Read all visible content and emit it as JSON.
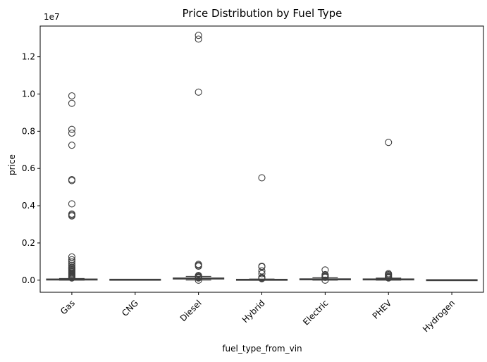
{
  "chart_data": {
    "type": "box",
    "title": "Price Distribution by Fuel Type",
    "xlabel": "fuel_type_from_vin",
    "ylabel": "price",
    "y_offset_label": "1e7",
    "ylim": [
      -0.065,
      1.365
    ],
    "y_ticks": [
      0.0,
      0.2,
      0.4,
      0.6,
      0.8,
      1.0,
      1.2
    ],
    "y_tick_labels": [
      "0.0",
      "0.2",
      "0.4",
      "0.6",
      "0.8",
      "1.0",
      "1.2"
    ],
    "y_scale": "×1e7",
    "x_tick_rotation": 45,
    "grid": false,
    "box_color": "#3b76af",
    "categories": [
      "Gas",
      "CNG",
      "Diesel",
      "Hybrid",
      "Electric",
      "PHEV",
      "Hydrogen"
    ],
    "boxes": [
      {
        "category": "Gas",
        "whisker_low": 0.0,
        "q1": 0.002,
        "median": 0.003,
        "q3": 0.005,
        "whisker_high": 0.009,
        "outliers": [
          0.99,
          0.95,
          0.81,
          0.79,
          0.725,
          0.54,
          0.535,
          0.41,
          0.355,
          0.35,
          0.345,
          0.125,
          0.11,
          0.1,
          0.09,
          0.08,
          0.07,
          0.065,
          0.06,
          0.055,
          0.05,
          0.045,
          0.04,
          0.035,
          0.03,
          0.025,
          0.02,
          0.015,
          0.012
        ]
      },
      {
        "category": "CNG",
        "whisker_low": 0.001,
        "q1": 0.0015,
        "median": 0.002,
        "q3": 0.003,
        "whisker_high": 0.004,
        "outliers": []
      },
      {
        "category": "Diesel",
        "whisker_low": 0.0005,
        "q1": 0.006,
        "median": 0.009,
        "q3": 0.012,
        "whisker_high": 0.02,
        "outliers": [
          1.315,
          1.295,
          1.01,
          0.085,
          0.08,
          0.075,
          0.025,
          0.022,
          0.018,
          0.015,
          0.012,
          0.0
        ]
      },
      {
        "category": "Hybrid",
        "whisker_low": 0.0,
        "q1": 0.001,
        "median": 0.002,
        "q3": 0.003,
        "whisker_high": 0.006,
        "outliers": [
          0.55,
          0.075,
          0.072,
          0.05,
          0.035,
          0.015,
          0.012,
          0.01,
          0.008
        ]
      },
      {
        "category": "Electric",
        "whisker_low": 0.0,
        "q1": 0.002,
        "median": 0.004,
        "q3": 0.007,
        "whisker_high": 0.013,
        "outliers": [
          0.055,
          0.03,
          0.025,
          0.02,
          0.017,
          0.015,
          0.0
        ]
      },
      {
        "category": "PHEV",
        "whisker_low": 0.0,
        "q1": 0.002,
        "median": 0.004,
        "q3": 0.006,
        "whisker_high": 0.011,
        "outliers": [
          0.74,
          0.035,
          0.03,
          0.025,
          0.02,
          0.016,
          0.013,
          0.012
        ]
      },
      {
        "category": "Hydrogen",
        "whisker_low": -0.0005,
        "q1": -0.0003,
        "median": 0.0,
        "q3": 0.0003,
        "whisker_high": 0.0005,
        "outliers": []
      }
    ]
  }
}
